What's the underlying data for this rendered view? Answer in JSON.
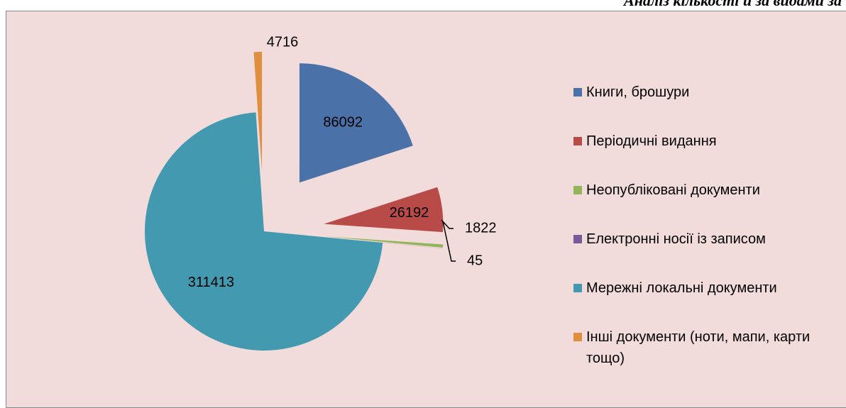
{
  "chart_data": {
    "type": "pie",
    "title": "Аналіз кількості й за видами за",
    "categories": [
      "Книги, брошури",
      "Періодичні видання",
      "Неопубліковані документи",
      "Електронні носії із записом",
      "Мережні локальні документи",
      "Інші документи (ноти, мапи, карти тощо)"
    ],
    "values": [
      86092,
      26192,
      1822,
      45,
      311413,
      4716
    ],
    "colors": [
      "#4a72a8",
      "#b84a48",
      "#93b45a",
      "#7a5b9a",
      "#4399b0",
      "#e08f3e"
    ],
    "legend": "right"
  }
}
